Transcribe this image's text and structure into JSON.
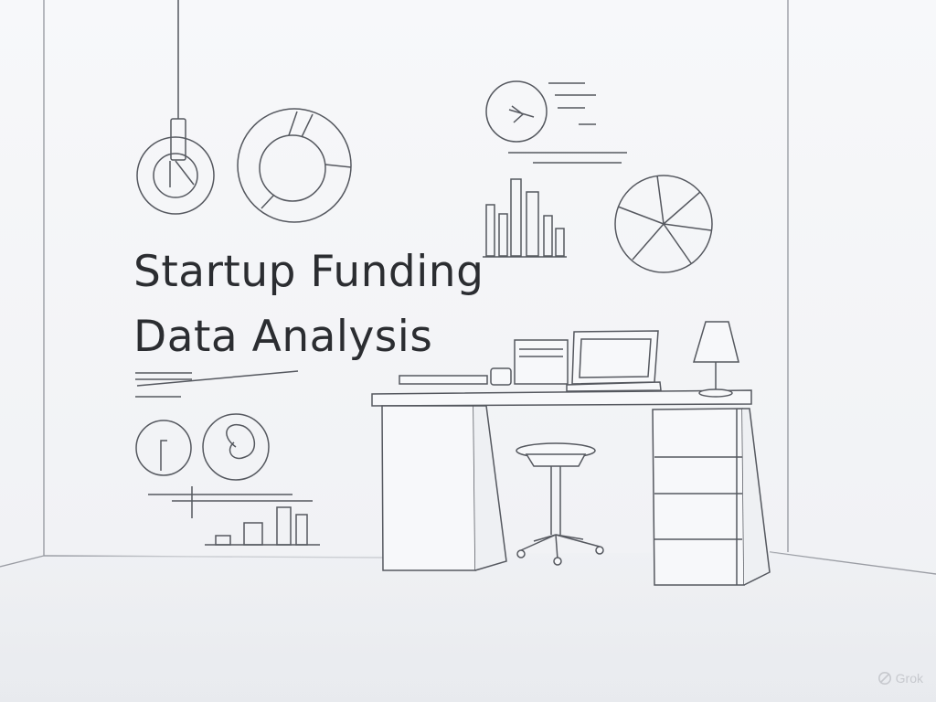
{
  "image": {
    "headline": {
      "line1": "Startup Funding",
      "line2": "Data Analysis"
    },
    "watermark": {
      "icon": "grok-logo-icon",
      "label": "Grok"
    }
  },
  "colors": {
    "background": "#f3f4f7",
    "line": "#55585f",
    "text": "#2b2d31",
    "watermark": "#c7c9ce"
  }
}
